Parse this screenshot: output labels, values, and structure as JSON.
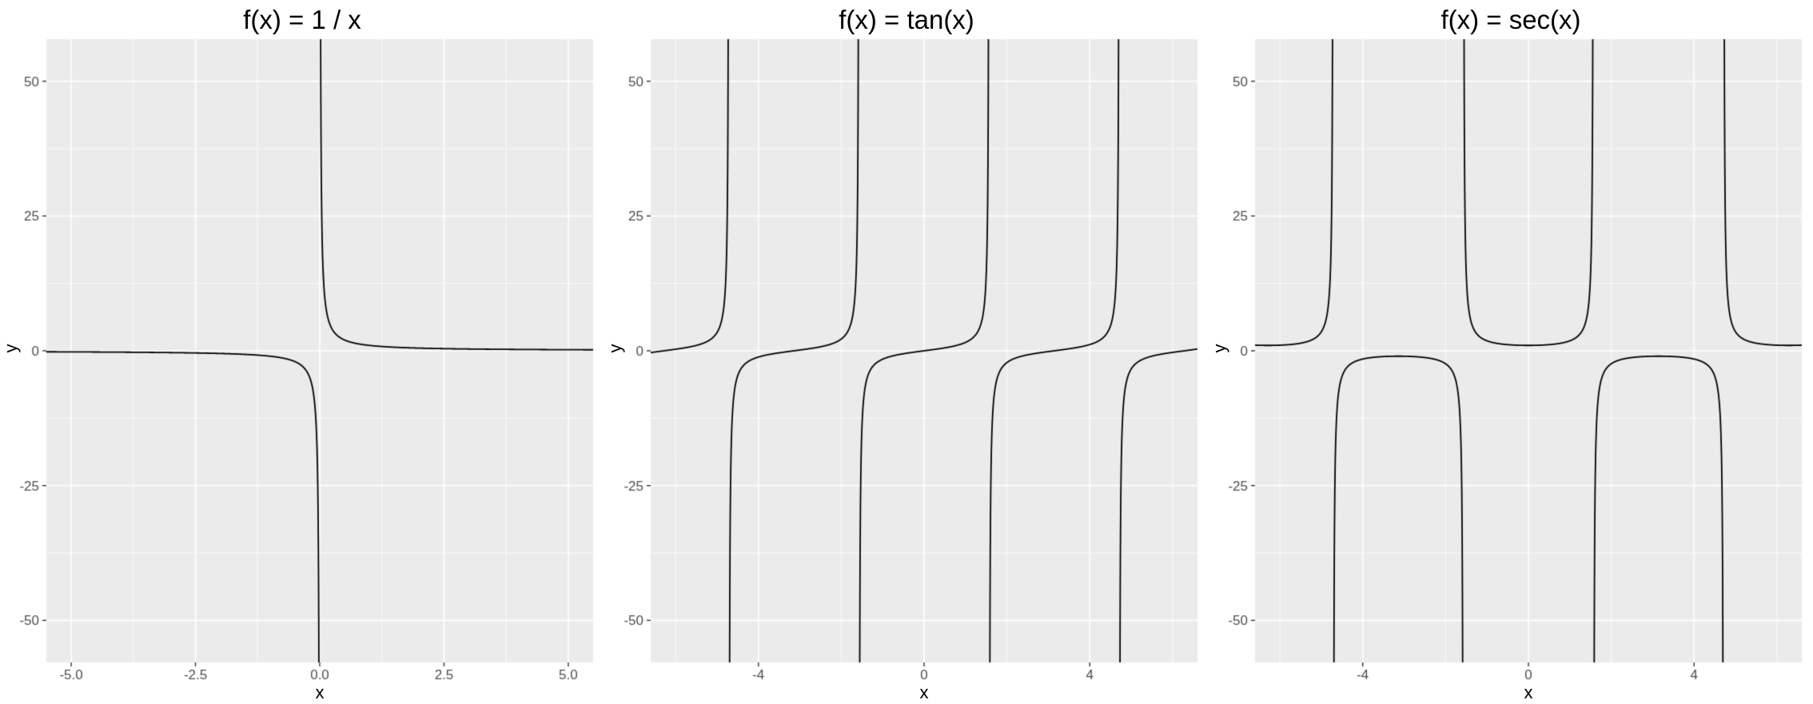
{
  "colors": {
    "figure_background": "#FFFFFF",
    "panel_background": "#EBEBEB",
    "grid_major": "#FFFFFF",
    "grid_minor": "#FFFFFF",
    "curve": "#000000",
    "tick_text": "#4D4D4D",
    "tick_mark": "#333333",
    "axis_title": "#000000",
    "title_text": "#000000"
  },
  "chart_data": [
    {
      "type": "line",
      "title": "f(x) = 1 / x",
      "xlabel": "x",
      "ylabel": "y",
      "fn": "reciprocal",
      "xlim": [
        -5.5,
        5.5
      ],
      "ylim": [
        -57.8,
        57.8
      ],
      "x_ticks": {
        "values": [
          -5.0,
          -2.5,
          0.0,
          2.5,
          5.0
        ],
        "labels": [
          "-5.0",
          "-2.5",
          "0.0",
          "2.5",
          "5.0"
        ]
      },
      "y_ticks": {
        "values": [
          -50,
          -25,
          0,
          25,
          50
        ],
        "labels": [
          "-50",
          "-25",
          "0",
          "25",
          "50"
        ]
      },
      "x_minor": [
        -3.75,
        -1.25,
        1.25,
        3.75
      ],
      "y_minor": [
        -37.5,
        -12.5,
        12.5,
        37.5
      ],
      "asymptotes_x": [
        0
      ],
      "grid": true,
      "legend": "none"
    },
    {
      "type": "line",
      "title": "f(x) = tan(x)",
      "xlabel": "x",
      "ylabel": "y",
      "fn": "tan",
      "xlim": [
        -6.6,
        6.6
      ],
      "ylim": [
        -57.8,
        57.8
      ],
      "x_ticks": {
        "values": [
          -4,
          0,
          4
        ],
        "labels": [
          "-4",
          "0",
          "4"
        ]
      },
      "y_ticks": {
        "values": [
          -50,
          -25,
          0,
          25,
          50
        ],
        "labels": [
          "-50",
          "-25",
          "0",
          "25",
          "50"
        ]
      },
      "x_minor": [
        -6,
        -2,
        2,
        6
      ],
      "y_minor": [
        -37.5,
        -12.5,
        12.5,
        37.5
      ],
      "asymptotes_x": [
        -4.712,
        -1.571,
        1.571,
        4.712
      ],
      "grid": true,
      "legend": "none"
    },
    {
      "type": "line",
      "title": "f(x) = sec(x)",
      "xlabel": "x",
      "ylabel": "y",
      "fn": "sec",
      "xlim": [
        -6.6,
        6.6
      ],
      "ylim": [
        -57.8,
        57.8
      ],
      "x_ticks": {
        "values": [
          -4,
          0,
          4
        ],
        "labels": [
          "-4",
          "0",
          "4"
        ]
      },
      "y_ticks": {
        "values": [
          -50,
          -25,
          0,
          25,
          50
        ],
        "labels": [
          "-50",
          "-25",
          "0",
          "25",
          "50"
        ]
      },
      "x_minor": [
        -6,
        -2,
        2,
        6
      ],
      "y_minor": [
        -37.5,
        -12.5,
        12.5,
        37.5
      ],
      "asymptotes_x": [
        -4.712,
        -1.571,
        1.571,
        4.712
      ],
      "grid": true,
      "legend": "none"
    }
  ]
}
